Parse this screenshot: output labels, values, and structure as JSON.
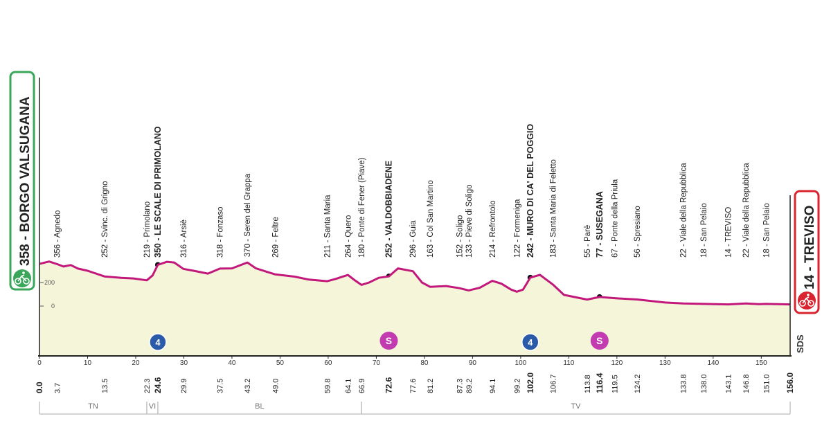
{
  "stage": {
    "start": {
      "label": "358 - BORGO VALSUGANA",
      "icon": "cyclist-icon"
    },
    "finish": {
      "label": "14 - TREVISO",
      "icon": "cyclist-icon"
    },
    "watermark": "SDS",
    "colors": {
      "profile_line": "#c2187b",
      "profile_fill": "#f5f6d9",
      "start_green": "#3aa65a",
      "finish_red": "#d9232e",
      "sprint_magenta": "#c23bb0",
      "kom_blue": "#2a5aa8"
    }
  },
  "chart_data": {
    "type": "area",
    "title": "",
    "xlabel": "",
    "ylabel": "",
    "xlim": [
      0,
      156
    ],
    "ylim": [
      -200,
      400
    ],
    "y_ticks": [
      0,
      200
    ],
    "x_ticks": [
      0,
      10,
      20,
      30,
      40,
      50,
      60,
      70,
      80,
      90,
      100,
      110,
      120,
      130,
      140,
      150
    ],
    "profile": [
      [
        0.0,
        358
      ],
      [
        2.0,
        378
      ],
      [
        3.7,
        356
      ],
      [
        5.0,
        336
      ],
      [
        6.5,
        348
      ],
      [
        8.0,
        318
      ],
      [
        10.0,
        300
      ],
      [
        13.5,
        252
      ],
      [
        17.0,
        240
      ],
      [
        19.5,
        235
      ],
      [
        22.3,
        219
      ],
      [
        23.5,
        260
      ],
      [
        24.6,
        350
      ],
      [
        26.5,
        376
      ],
      [
        28.0,
        370
      ],
      [
        29.9,
        316
      ],
      [
        32.0,
        300
      ],
      [
        35.0,
        276
      ],
      [
        37.5,
        318
      ],
      [
        40.0,
        320
      ],
      [
        43.2,
        370
      ],
      [
        45.0,
        320
      ],
      [
        49.0,
        269
      ],
      [
        53.0,
        250
      ],
      [
        56.0,
        225
      ],
      [
        59.8,
        211
      ],
      [
        61.5,
        230
      ],
      [
        64.1,
        264
      ],
      [
        65.5,
        220
      ],
      [
        66.9,
        180
      ],
      [
        68.5,
        200
      ],
      [
        70.5,
        240
      ],
      [
        72.6,
        252
      ],
      [
        74.5,
        320
      ],
      [
        77.6,
        296
      ],
      [
        79.5,
        200
      ],
      [
        81.2,
        163
      ],
      [
        84.5,
        170
      ],
      [
        87.3,
        152
      ],
      [
        89.2,
        133
      ],
      [
        91.5,
        155
      ],
      [
        94.1,
        214
      ],
      [
        96.0,
        190
      ],
      [
        98.0,
        140
      ],
      [
        99.2,
        122
      ],
      [
        100.5,
        140
      ],
      [
        102.0,
        242
      ],
      [
        104.0,
        265
      ],
      [
        106.7,
        183
      ],
      [
        109.0,
        95
      ],
      [
        113.8,
        55
      ],
      [
        116.4,
        77
      ],
      [
        119.5,
        67
      ],
      [
        124.2,
        56
      ],
      [
        130.0,
        30
      ],
      [
        133.8,
        22
      ],
      [
        138.0,
        18
      ],
      [
        140.5,
        16
      ],
      [
        143.1,
        14
      ],
      [
        146.8,
        22
      ],
      [
        149.5,
        16
      ],
      [
        151.0,
        18
      ],
      [
        156.0,
        14
      ]
    ],
    "points": [
      {
        "label": "356 - Agnedo",
        "km": "3.7",
        "x": 3.7,
        "y": 356,
        "major": false,
        "marker": ""
      },
      {
        "label": "252 - Svinc. di Grigno",
        "km": "13.5",
        "x": 13.5,
        "y": 252,
        "major": false,
        "marker": ""
      },
      {
        "label": "219 - Primolano",
        "km": "22.3",
        "x": 22.3,
        "y": 219,
        "major": false,
        "marker": ""
      },
      {
        "label": "350 - LE SCALE DI PRIMOLANO",
        "km": "24.6",
        "x": 24.6,
        "y": 350,
        "major": true,
        "marker": "kom",
        "marker_text": "4"
      },
      {
        "label": "316 - Arsiè",
        "km": "29.9",
        "x": 29.9,
        "y": 316,
        "major": false,
        "marker": ""
      },
      {
        "label": "318 - Fonzaso",
        "km": "37.5",
        "x": 37.5,
        "y": 318,
        "major": false,
        "marker": ""
      },
      {
        "label": "370 - Seren del Grappa",
        "km": "43.2",
        "x": 43.2,
        "y": 370,
        "major": false,
        "marker": ""
      },
      {
        "label": "269 - Feltre",
        "km": "49.0",
        "x": 49.0,
        "y": 269,
        "major": false,
        "marker": ""
      },
      {
        "label": "211 - Santa Maria",
        "km": "59.8",
        "x": 59.8,
        "y": 211,
        "major": false,
        "marker": ""
      },
      {
        "label": "264 - Quero",
        "km": "64.1",
        "x": 64.1,
        "y": 264,
        "major": false,
        "marker": ""
      },
      {
        "label": "180 - Ponte di Fener (Piave)",
        "km": "66.9",
        "x": 66.9,
        "y": 180,
        "major": false,
        "marker": ""
      },
      {
        "label": "252 - VALDOBBIADENE",
        "km": "72.6",
        "x": 72.6,
        "y": 252,
        "major": true,
        "marker": "sprint",
        "marker_text": "S"
      },
      {
        "label": "296 - Guia",
        "km": "77.6",
        "x": 77.6,
        "y": 296,
        "major": false,
        "marker": ""
      },
      {
        "label": "163 - Col San Martino",
        "km": "81.2",
        "x": 81.2,
        "y": 163,
        "major": false,
        "marker": ""
      },
      {
        "label": "152 - Soligo",
        "km": "87.3",
        "x": 87.3,
        "y": 152,
        "major": false,
        "marker": ""
      },
      {
        "label": "133 - Pieve di Soligo",
        "km": "89.2",
        "x": 89.2,
        "y": 133,
        "major": false,
        "marker": ""
      },
      {
        "label": "214 - Refrontolo",
        "km": "94.1",
        "x": 94.1,
        "y": 214,
        "major": false,
        "marker": ""
      },
      {
        "label": "122 - Formeniga",
        "km": "99.2",
        "x": 99.2,
        "y": 122,
        "major": false,
        "marker": ""
      },
      {
        "label": "242 - MURO DI CA' DEL POGGIO",
        "km": "102.0",
        "x": 102.0,
        "y": 242,
        "major": true,
        "marker": "kom",
        "marker_text": "4"
      },
      {
        "label": "183 - Santa Maria di Feletto",
        "km": "106.7",
        "x": 106.7,
        "y": 183,
        "major": false,
        "marker": ""
      },
      {
        "label": "55 - Parè",
        "km": "113.8",
        "x": 113.8,
        "y": 55,
        "major": false,
        "marker": ""
      },
      {
        "label": "77 - SUSEGANA",
        "km": "116.4",
        "x": 116.4,
        "y": 77,
        "major": true,
        "marker": "sprint",
        "marker_text": "S"
      },
      {
        "label": "67 - Ponte della Priula",
        "km": "119.5",
        "x": 119.5,
        "y": 67,
        "major": false,
        "marker": ""
      },
      {
        "label": "56 - Spresiano",
        "km": "124.2",
        "x": 124.2,
        "y": 56,
        "major": false,
        "marker": ""
      },
      {
        "label": "22 - Viale della Repubblica",
        "km": "133.8",
        "x": 133.8,
        "y": 22,
        "major": false,
        "marker": ""
      },
      {
        "label": "18 - San Pelaio",
        "km": "138.0",
        "x": 138.0,
        "y": 18,
        "major": false,
        "marker": ""
      },
      {
        "label": "14 - TREVISO",
        "km": "143.1",
        "x": 143.1,
        "y": 14,
        "major": false,
        "marker": ""
      },
      {
        "label": "22 - Viale della Repubblica",
        "km": "146.8",
        "x": 146.8,
        "y": 22,
        "major": false,
        "marker": ""
      },
      {
        "label": "18 - San Pelaio",
        "km": "151.0",
        "x": 151.0,
        "y": 18,
        "major": false,
        "marker": ""
      }
    ],
    "km_start": "0.0",
    "km_end": "156.0",
    "regions": [
      {
        "label": "TN",
        "from": 0,
        "to": 22.3
      },
      {
        "label": "VI",
        "from": 22.3,
        "to": 24.6
      },
      {
        "label": "BL",
        "from": 24.6,
        "to": 66.9
      },
      {
        "label": "TV",
        "from": 66.9,
        "to": 156.0
      }
    ]
  }
}
